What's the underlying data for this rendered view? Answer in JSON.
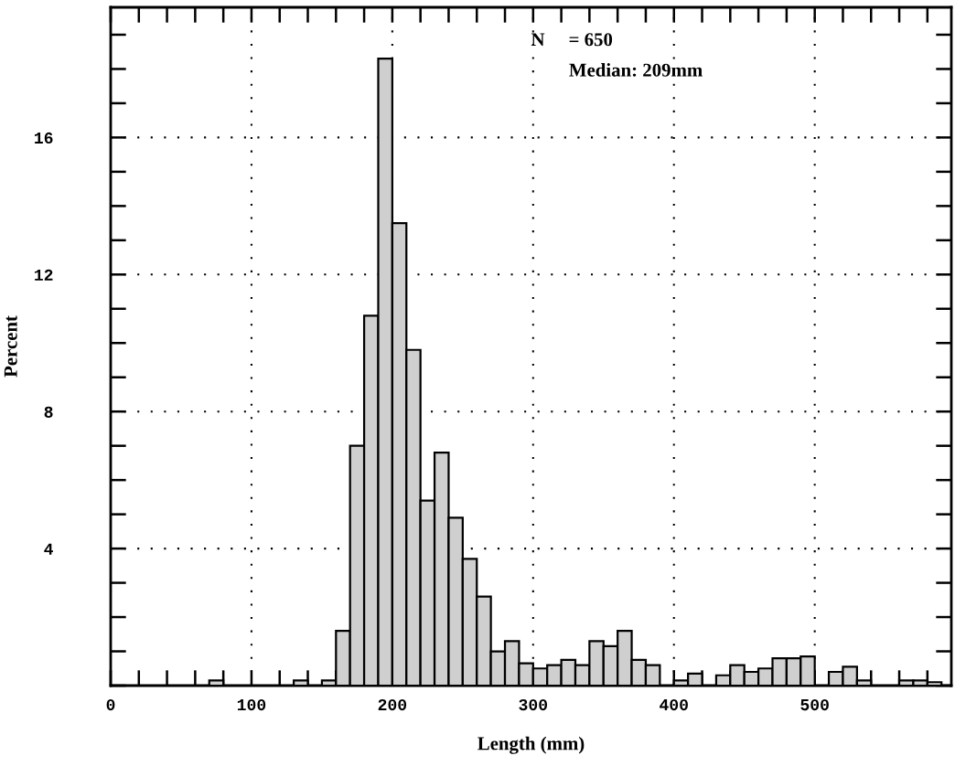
{
  "chart_data": {
    "type": "histogram",
    "xlabel": "Length (mm)",
    "ylabel": "Percent",
    "annotations": [
      "N     = 650",
      "Median: 209mm"
    ],
    "bins": [
      0,
      10,
      20,
      30,
      40,
      50,
      60,
      70,
      80,
      90,
      100,
      110,
      120,
      130,
      140,
      150,
      160,
      170,
      180,
      190,
      200,
      210,
      220,
      230,
      240,
      250,
      260,
      270,
      280,
      290,
      300,
      310,
      320,
      330,
      340,
      350,
      360,
      370,
      380,
      390,
      400,
      410,
      420,
      430,
      440,
      450,
      460,
      470,
      480,
      490,
      500,
      510,
      520,
      530,
      540,
      550,
      560,
      570,
      580,
      590
    ],
    "values": [
      null,
      null,
      null,
      null,
      null,
      null,
      null,
      0.15,
      null,
      null,
      null,
      null,
      null,
      0.15,
      null,
      0.15,
      1.6,
      7.0,
      10.8,
      18.3,
      13.5,
      9.8,
      5.4,
      6.8,
      4.9,
      3.7,
      2.6,
      1.0,
      1.3,
      0.65,
      0.5,
      0.6,
      0.75,
      0.6,
      1.3,
      1.15,
      1.6,
      0.75,
      0.6,
      null,
      0.15,
      0.35,
      null,
      0.3,
      0.6,
      0.4,
      0.5,
      0.8,
      0.8,
      0.85,
      null,
      0.4,
      0.55,
      0.15,
      null,
      null,
      0.15,
      0.15,
      0.1
    ],
    "color": "#cfcfcf",
    "xlim": [
      0,
      597
    ],
    "ylim": [
      0,
      19.8
    ],
    "xticks": [
      0,
      100,
      200,
      300,
      400,
      500
    ],
    "yticks": [
      4,
      8,
      12,
      16
    ],
    "grid": true
  }
}
